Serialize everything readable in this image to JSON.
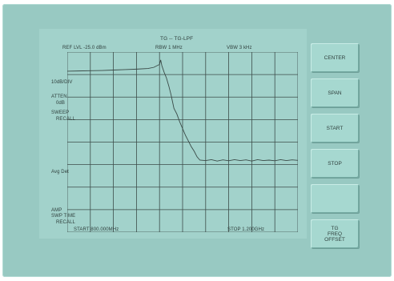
{
  "screen": {
    "title": "TG -- TG-LPF",
    "ref_level": "REF LVL  -25.0 dBm",
    "rbw": "RBW  1 MHz",
    "vbw": "VBW  3 kHz",
    "left_labels": {
      "scale": "10dB/DIV",
      "atten": "ATTEN",
      "atten_value": "0dB",
      "sweep": "SWEEP",
      "recall": "RECALL",
      "avg": "Avg Det",
      "amp": "AMP",
      "swp_time": "SWP TIME",
      "recall2": "RECALL"
    },
    "start": "START  800.000MHz",
    "stop": "STOP  1.200GHz"
  },
  "softkeys": [
    {
      "lines": [
        "CENTER"
      ]
    },
    {
      "lines": [
        "SPAN"
      ]
    },
    {
      "lines": [
        "START"
      ]
    },
    {
      "lines": [
        "STOP"
      ]
    },
    {
      "lines": []
    },
    {
      "lines": [
        "TG",
        "FREQ",
        "OFFSET"
      ]
    }
  ],
  "chart_data": {
    "type": "line",
    "x_start": 800,
    "x_stop": 1200,
    "x_unit": "MHz",
    "y_ref": -25,
    "y_scale_per_div": 10,
    "y_unit": "dBm",
    "grid": true,
    "grid_divisions": {
      "x": 10,
      "y": 8
    },
    "series": [
      {
        "x": [
          800,
          820,
          840,
          860,
          880,
          900,
          920,
          940,
          950,
          960,
          962,
          964,
          968,
          972,
          976,
          980,
          985,
          990,
          995,
          1000,
          1005,
          1010,
          1015,
          1020,
          1025,
          1030,
          1040,
          1050,
          1060,
          1070,
          1080,
          1090,
          1100,
          1110,
          1120,
          1130,
          1140,
          1150,
          1160,
          1170,
          1180,
          1190,
          1200
        ],
        "y": [
          -33.5,
          -33.4,
          -33.3,
          -33.2,
          -33.0,
          -32.8,
          -32.6,
          -32.3,
          -31.8,
          -30.5,
          -28.5,
          -31.0,
          -34.0,
          -36.5,
          -40.0,
          -44.0,
          -50.0,
          -52.5,
          -56.0,
          -59.0,
          -62.0,
          -64.5,
          -67.0,
          -69.0,
          -71.5,
          -73.0,
          -73.2,
          -72.8,
          -73.4,
          -72.9,
          -73.3,
          -72.8,
          -73.2,
          -72.9,
          -73.4,
          -72.8,
          -73.2,
          -73.0,
          -73.3,
          -72.8,
          -73.2,
          -72.9,
          -73.1
        ]
      }
    ]
  }
}
